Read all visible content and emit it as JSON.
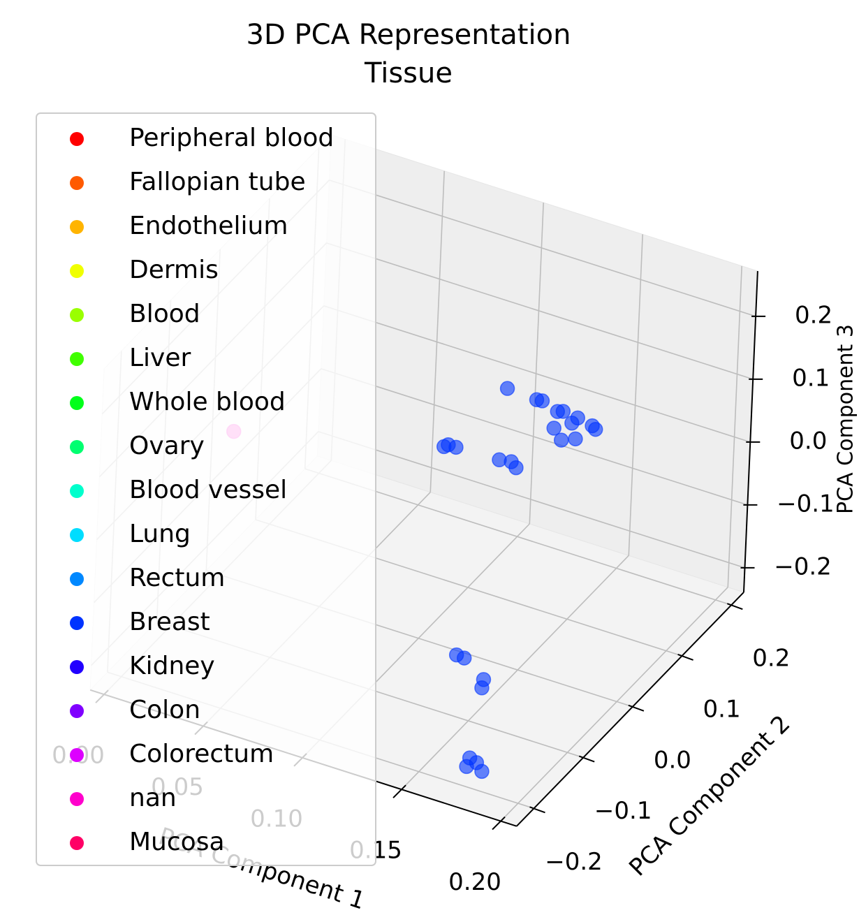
{
  "chart_data": {
    "type": "scatter3d",
    "title": "3D PCA Representation",
    "subtitle": "Tissue",
    "x_label": "PCA Component 1",
    "y_label": "PCA Component 2",
    "z_label": "PCA Component 3",
    "xlim": [
      -0.007,
      0.208
    ],
    "ylim": [
      -0.235,
      0.225
    ],
    "zlim": [
      -0.239,
      0.272
    ],
    "xticks": [
      {
        "value": 0,
        "label": "0.00"
      },
      {
        "value": 0.05,
        "label": "0.05"
      },
      {
        "value": 0.1,
        "label": "0.10"
      },
      {
        "value": 0.15,
        "label": "0.15"
      },
      {
        "value": 0.2,
        "label": "0.20"
      }
    ],
    "yticks": [
      {
        "value": -0.2,
        "label": "−0.2"
      },
      {
        "value": -0.1,
        "label": "−0.1"
      },
      {
        "value": 0,
        "label": "0.0"
      },
      0.1,
      0.2
    ],
    "zticks": [
      {
        "value": -0.2,
        "label": "−0.2"
      },
      {
        "value": -0.1,
        "label": "−0.1"
      },
      {
        "value": 0,
        "label": "0.0"
      },
      0.1,
      0.2
    ],
    "grid": true,
    "legend_position": "upper left",
    "series": [
      {
        "name": "Peripheral blood",
        "color": "#ff0000",
        "x": [],
        "y": [],
        "z": []
      },
      {
        "name": "Fallopian tube",
        "color": "#ff5a00",
        "x": [],
        "y": [],
        "z": []
      },
      {
        "name": "Endothelium",
        "color": "#ffb400",
        "x": [],
        "y": [],
        "z": []
      },
      {
        "name": "Dermis",
        "color": "#f0ff00",
        "x": [],
        "y": [],
        "z": []
      },
      {
        "name": "Blood",
        "color": "#9aff00",
        "x": [],
        "y": [],
        "z": []
      },
      {
        "name": "Liver",
        "color": "#40ff00",
        "x": [],
        "y": [],
        "z": []
      },
      {
        "name": "Whole blood",
        "color": "#00ff1a",
        "x": [],
        "y": [],
        "z": []
      },
      {
        "name": "Ovary",
        "color": "#00ff70",
        "x": [],
        "y": [],
        "z": []
      },
      {
        "name": "Blood vessel",
        "color": "#00ffcc",
        "x": [],
        "y": [],
        "z": []
      },
      {
        "name": "Lung",
        "color": "#00ddff",
        "x": [],
        "y": [],
        "z": []
      },
      {
        "name": "Rectum",
        "color": "#0088ff",
        "x": [],
        "y": [],
        "z": []
      },
      {
        "name": "Breast",
        "color": "#0033ff",
        "x": [
          0.1154,
          0.1302,
          0.133,
          0.1408,
          0.1436,
          0.1394,
          0.1482,
          0.151,
          0.1433,
          0.1503,
          0.1584,
          0.1601,
          0.0851,
          0.0872,
          0.0911,
          0.1129,
          0.1189,
          0.1214,
          0.1662,
          0.1701,
          0.1802,
          0.1795,
          0.175,
          0.1736,
          0.1785,
          0.1813
        ],
        "y": [
          0.1,
          0.1,
          0.1,
          0.1,
          0.1,
          0.1,
          0.1,
          0.1,
          0.1,
          0.1,
          0.1,
          0.1,
          0.1,
          0.1,
          0.1,
          0.1,
          0.1,
          0.1,
          -0.2,
          -0.2,
          -0.2,
          -0.2,
          -0.2,
          -0.2,
          -0.2,
          -0.2
        ],
        "z": [
          0.093,
          0.09,
          0.091,
          0.082,
          0.085,
          0.054,
          0.071,
          0.082,
          0.039,
          0.048,
          0.077,
          0.073,
          -0.03,
          -0.025,
          -0.025,
          -0.023,
          -0.02,
          -0.027,
          -0.037,
          -0.038,
          -0.062,
          -0.076,
          -0.192,
          -0.207,
          -0.196,
          -0.207
        ]
      },
      {
        "name": "Kidney",
        "color": "#2200ff",
        "x": [],
        "y": [],
        "z": []
      },
      {
        "name": "Colon",
        "color": "#8000ff",
        "x": [],
        "y": [],
        "z": []
      },
      {
        "name": "Colorectum",
        "color": "#dd00ff",
        "x": [],
        "y": [],
        "z": []
      },
      {
        "name": "nan",
        "color": "#ff00cc",
        "x": [
          0.0037
        ],
        "y": [
          0
        ],
        "z": [
          -0.007
        ]
      },
      {
        "name": "Mucosa",
        "color": "#ff0066",
        "x": [],
        "y": [],
        "z": []
      }
    ]
  }
}
